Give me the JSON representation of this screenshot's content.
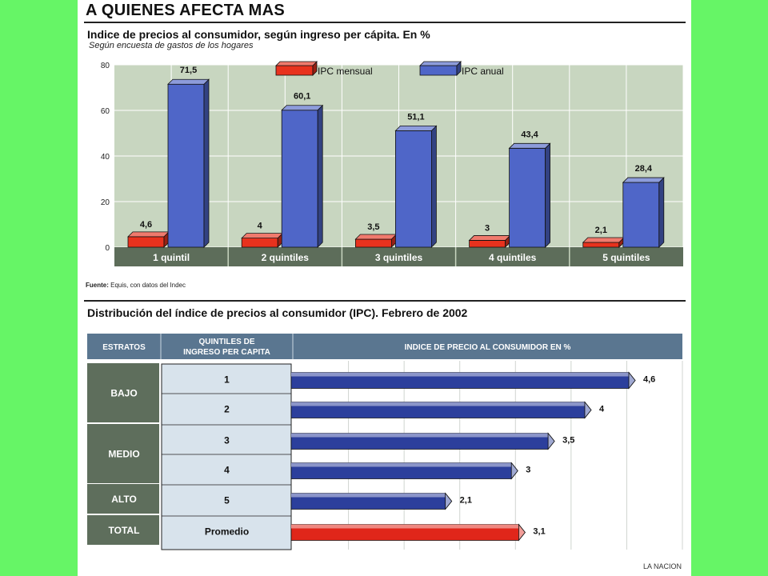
{
  "page": {
    "title": "A QUIENES AFECTA MAS",
    "credit": "LA NACION",
    "background_color": "#66f566"
  },
  "chart_data": [
    {
      "type": "bar",
      "title": "Indice de precios al consumidor, según ingreso per cápita. En %",
      "subtitle": "Según encuesta de gastos de los hogares",
      "source_label": "Fuente:",
      "source_text": "Equis, con datos del Indec",
      "categories": [
        "1 quintil",
        "2 quintiles",
        "3 quintiles",
        "4 quintiles",
        "5 quintiles"
      ],
      "series": [
        {
          "name": "IPC mensual",
          "color": "#e8321e",
          "values": [
            4.6,
            4,
            3.5,
            3,
            2.1
          ],
          "labels": [
            "4,6",
            "4",
            "3,5",
            "3",
            "2,1"
          ]
        },
        {
          "name": "IPC anual",
          "color": "#4f66c8",
          "values": [
            71.5,
            60.1,
            51.1,
            43.4,
            28.4
          ],
          "labels": [
            "71,5",
            "60,1",
            "51,1",
            "43,4",
            "28,4"
          ]
        }
      ],
      "yticks": [
        "80",
        "60",
        "40",
        "20",
        "0"
      ],
      "ylim": [
        0,
        80
      ],
      "grid": true,
      "legend": "top"
    },
    {
      "type": "bar",
      "orientation": "horizontal",
      "title": "Distribución del índice de precios al consumidor (IPC). Febrero de 2002",
      "headers": [
        "ESTRATOS",
        "QUINTILES DE INGRESO PER CAPITA",
        "INDICE DE PRECIO AL CONSUMIDOR EN %"
      ],
      "strata": [
        {
          "label": "BAJO",
          "rows": 2
        },
        {
          "label": "MEDIO",
          "rows": 2
        },
        {
          "label": "ALTO",
          "rows": 1
        },
        {
          "label": "TOTAL",
          "rows": 1
        }
      ],
      "rows": [
        {
          "quintile": "1",
          "value": 4.6,
          "label": "4,6",
          "color": "#2c3f9c"
        },
        {
          "quintile": "2",
          "value": 4,
          "label": "4",
          "color": "#2c3f9c"
        },
        {
          "quintile": "3",
          "value": 3.5,
          "label": "3,5",
          "color": "#2c3f9c"
        },
        {
          "quintile": "4",
          "value": 3,
          "label": "3",
          "color": "#2c3f9c"
        },
        {
          "quintile": "5",
          "value": 2.1,
          "label": "2,1",
          "color": "#2c3f9c"
        },
        {
          "quintile": "Promedio",
          "value": 3.1,
          "label": "3,1",
          "color": "#e0261a"
        }
      ],
      "xlim": [
        0,
        4.6
      ]
    }
  ]
}
